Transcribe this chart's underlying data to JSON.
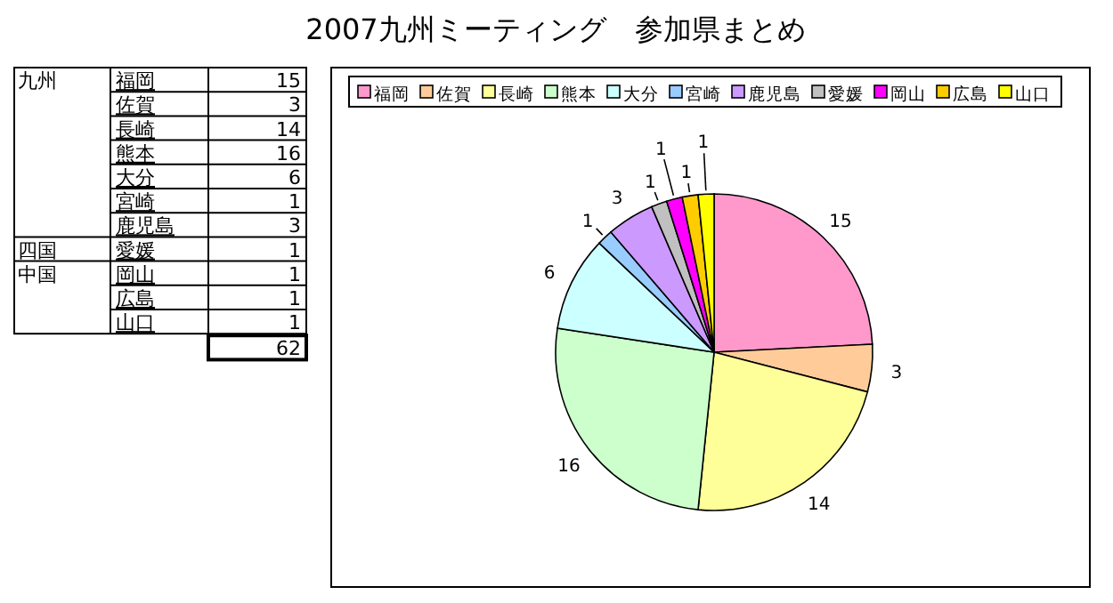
{
  "chart_data": [
    {
      "type": "other",
      "title": "2007九州ミーティング　参加県まとめ",
      "categories": [
        "福岡",
        "佐賀",
        "長崎",
        "熊本",
        "大分",
        "宮崎",
        "鹿児島",
        "愛媛",
        "岡山",
        "広島",
        "山口"
      ],
      "values": [
        15,
        3,
        14,
        16,
        6,
        1,
        3,
        1,
        1,
        1,
        1
      ],
      "data_labels": true,
      "annotations": [
        {
          "text": "九州",
          "x": "福岡"
        },
        {
          "text": "四国",
          "x": "愛媛"
        },
        {
          "text": "中国",
          "x": "岡山"
        },
        "62"
      ]
    },
    {
      "type": "pie",
      "categories": [
        "福岡",
        "佐賀",
        "長崎",
        "熊本",
        "大分",
        "宮崎",
        "鹿児島",
        "愛媛",
        "岡山",
        "広島",
        "山口"
      ],
      "values": [
        15,
        3,
        14,
        16,
        6,
        1,
        3,
        1,
        1,
        1,
        1
      ],
      "colors": [
        "#ff99cc",
        "#ffcc99",
        "#ffff99",
        "#ccffcc",
        "#ccffff",
        "#99ccff",
        "#cc99ff",
        "#c0c0c0",
        "#ff00ff",
        "#ffcc00",
        "#ffff00"
      ],
      "legend": "top",
      "data_labels": true
    }
  ]
}
